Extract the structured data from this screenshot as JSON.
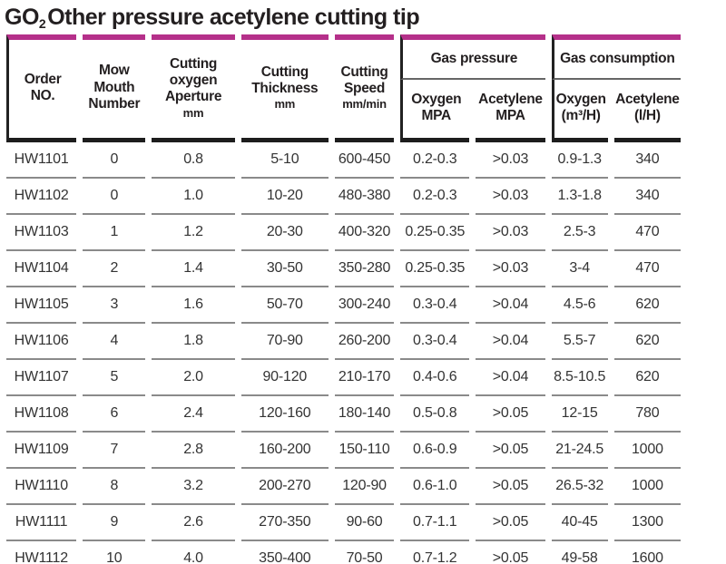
{
  "title": {
    "prefix": "GO",
    "subscript": "2",
    "rest": "Other pressure acetylene cutting tip"
  },
  "accent_color": "#b5308a",
  "table": {
    "group_headers": [
      {
        "label": "Gas pressure"
      },
      {
        "label": "Gas consumption"
      }
    ],
    "columns": [
      {
        "id": "order-no",
        "lines": [
          "Order",
          "NO."
        ]
      },
      {
        "id": "mow-mouth-number",
        "lines": [
          "Mow",
          "Mouth",
          "Number"
        ]
      },
      {
        "id": "cutting-oxygen-aperture",
        "lines": [
          "Cutting",
          "oxygen",
          "Aperture"
        ],
        "unit": "mm"
      },
      {
        "id": "cutting-thickness",
        "lines": [
          "Cutting",
          "Thickness"
        ],
        "unit": "mm"
      },
      {
        "id": "cutting-speed",
        "lines": [
          "Cutting",
          "Speed"
        ],
        "unit": "mm/min"
      },
      {
        "id": "oxygen-mpa",
        "lines": [
          "Oxygen",
          "MPA"
        ]
      },
      {
        "id": "acetylene-mpa",
        "lines": [
          "Acetylene",
          "MPA"
        ]
      },
      {
        "id": "oxygen-m3h",
        "lines": [
          "Oxygen",
          "(m³/H)"
        ]
      },
      {
        "id": "acetylene-lh",
        "lines": [
          "Acetylene",
          "(l/H)"
        ]
      }
    ],
    "rows": [
      [
        "HW1101",
        "0",
        "0.8",
        "5-10",
        "600-450",
        "0.2-0.3",
        ">0.03",
        "0.9-1.3",
        "340"
      ],
      [
        "HW1102",
        "0",
        "1.0",
        "10-20",
        "480-380",
        "0.2-0.3",
        ">0.03",
        "1.3-1.8",
        "340"
      ],
      [
        "HW1103",
        "1",
        "1.2",
        "20-30",
        "400-320",
        "0.25-0.35",
        ">0.03",
        "2.5-3",
        "470"
      ],
      [
        "HW1104",
        "2",
        "1.4",
        "30-50",
        "350-280",
        "0.25-0.35",
        ">0.03",
        "3-4",
        "470"
      ],
      [
        "HW1105",
        "3",
        "1.6",
        "50-70",
        "300-240",
        "0.3-0.4",
        ">0.04",
        "4.5-6",
        "620"
      ],
      [
        "HW1106",
        "4",
        "1.8",
        "70-90",
        "260-200",
        "0.3-0.4",
        ">0.04",
        "5.5-7",
        "620"
      ],
      [
        "HW1107",
        "5",
        "2.0",
        "90-120",
        "210-170",
        "0.4-0.6",
        ">0.04",
        "8.5-10.5",
        "620"
      ],
      [
        "HW1108",
        "6",
        "2.4",
        "120-160",
        "180-140",
        "0.5-0.8",
        ">0.05",
        "12-15",
        "780"
      ],
      [
        "HW1109",
        "7",
        "2.8",
        "160-200",
        "150-110",
        "0.6-0.9",
        ">0.05",
        "21-24.5",
        "1000"
      ],
      [
        "HW1110",
        "8",
        "3.2",
        "200-270",
        "120-90",
        "0.6-1.0",
        ">0.05",
        "26.5-32",
        "1000"
      ],
      [
        "HW1111",
        "9",
        "2.6",
        "270-350",
        "90-60",
        "0.7-1.1",
        ">0.05",
        "40-45",
        "1300"
      ],
      [
        "HW1112",
        "10",
        "4.0",
        "350-400",
        "70-50",
        "0.7-1.2",
        ">0.05",
        "49-58",
        "1600"
      ]
    ]
  }
}
